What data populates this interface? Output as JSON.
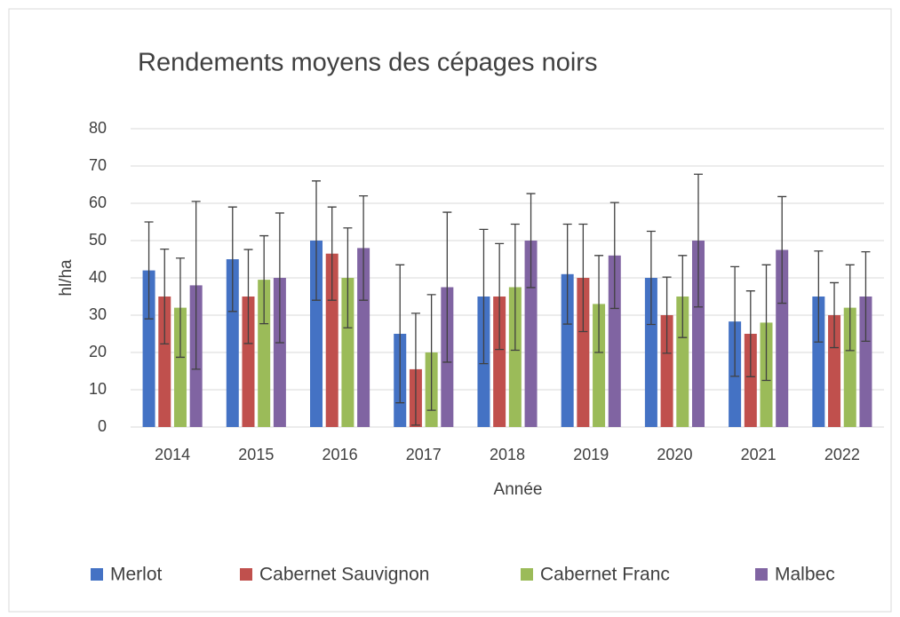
{
  "chart_data": {
    "type": "bar",
    "title": "Rendements moyens des cépages noirs",
    "x_label": "Année",
    "y_label": "hl/ha",
    "categories": [
      "2014",
      "2015",
      "2016",
      "2017",
      "2018",
      "2019",
      "2020",
      "2021",
      "2022"
    ],
    "series": [
      {
        "name": "Merlot",
        "color": "#4472c4",
        "values": [
          42,
          45,
          50,
          25,
          35,
          41,
          40,
          28.3,
          35
        ],
        "errors": [
          13,
          14,
          16,
          18.5,
          18,
          13.4,
          12.5,
          14.7,
          12.2
        ]
      },
      {
        "name": "Cabernet Sauvignon",
        "color": "#c0504d",
        "values": [
          35,
          35,
          46.5,
          15.5,
          35,
          40,
          30,
          25,
          30
        ],
        "errors": [
          12.7,
          12.6,
          12.5,
          15,
          14.2,
          14.4,
          10.2,
          11.5,
          8.7
        ]
      },
      {
        "name": "Cabernet Franc",
        "color": "#9bbb59",
        "values": [
          32,
          39.5,
          40,
          20,
          37.5,
          33,
          35,
          28,
          32
        ],
        "errors": [
          13.3,
          11.8,
          13.4,
          15.5,
          16.9,
          13,
          11,
          15.5,
          11.5
        ]
      },
      {
        "name": "Malbec",
        "color": "#8064a2",
        "values": [
          38,
          40,
          48,
          37.5,
          50,
          46,
          50,
          47.5,
          35
        ],
        "errors": [
          22.5,
          17.4,
          14,
          20.1,
          12.6,
          14.2,
          17.8,
          14.3,
          12
        ]
      }
    ],
    "ylim": [
      0,
      80
    ],
    "yticks": [
      0,
      10,
      20,
      30,
      40,
      50,
      60,
      70,
      80
    ],
    "grid": true,
    "legend": "bottom"
  }
}
